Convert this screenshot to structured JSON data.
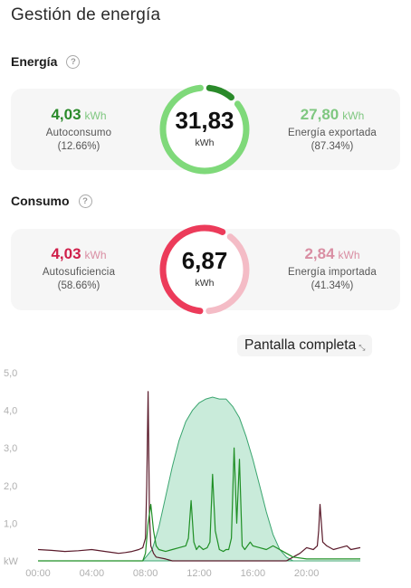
{
  "page": {
    "title": "Gestión de energía"
  },
  "energy": {
    "section_title": "Energía",
    "self_consumption": {
      "value": "4,03",
      "unit": "kWh",
      "label": "Autoconsumo",
      "percent": "(12.66%)"
    },
    "exported": {
      "value": "27,80",
      "unit": "kWh",
      "label": "Energía exportada",
      "percent": "(87.34%)"
    },
    "total": {
      "value": "31,83",
      "unit": "kWh"
    },
    "ring": {
      "self_fraction": 0.1266,
      "color_self": "#2a8a2a",
      "color_export": "#7fd97a"
    }
  },
  "consumption": {
    "section_title": "Consumo",
    "self_sufficiency": {
      "value": "4,03",
      "unit": "kWh",
      "label": "Autosuficiencia",
      "percent": "(58.66%)"
    },
    "imported": {
      "value": "2,84",
      "unit": "kWh",
      "label": "Energía importada",
      "percent": "(41.34%)"
    },
    "total": {
      "value": "6,87",
      "unit": "kWh"
    },
    "ring": {
      "self_fraction": 0.5866,
      "color_self": "#ec3b5a",
      "color_import": "#f4bcc6"
    }
  },
  "fullscreen_button": {
    "label": "Pantalla completa",
    "icon": "expand-icon"
  },
  "chart_data": {
    "type": "area",
    "x_ticks": [
      "00:00",
      "04:00",
      "08:00",
      "12:00",
      "16:00",
      "20:00"
    ],
    "y_ticks": [
      "kW",
      "1,0",
      "2,0",
      "3,0",
      "4,0",
      "5,0"
    ],
    "ylim": [
      0,
      5
    ],
    "xlim": [
      0,
      24
    ],
    "grid": false,
    "series": [
      {
        "color": "#3aa56f",
        "fill": "#bfe8d4",
        "x": [
          0,
          7.8,
          8.5,
          9.0,
          9.5,
          10.0,
          10.5,
          11.0,
          11.5,
          12.0,
          12.5,
          13.0,
          13.5,
          14.0,
          14.5,
          15.0,
          15.5,
          16.0,
          16.5,
          17.0,
          17.5,
          18.0,
          18.5,
          19.0,
          24
        ],
        "y": [
          0,
          0,
          0.3,
          0.9,
          1.7,
          2.5,
          3.2,
          3.7,
          4.0,
          4.2,
          4.3,
          4.35,
          4.3,
          4.3,
          4.1,
          3.8,
          3.3,
          2.7,
          2.0,
          1.3,
          0.7,
          0.3,
          0.1,
          0,
          0
        ]
      },
      {
        "color": "#5a1a2a",
        "x": [
          0,
          1,
          2,
          3,
          4,
          5,
          6,
          6.5,
          7,
          7.5,
          7.8,
          8.0,
          8.1,
          8.2,
          8.3,
          8.4,
          8.6,
          8.8,
          9.5,
          10,
          18.5,
          19,
          19.5,
          20,
          20.5,
          20.8,
          20.9,
          21.0,
          21.2,
          21.5,
          22,
          22.5,
          23,
          23.3,
          24
        ],
        "y": [
          0.3,
          0.28,
          0.25,
          0.27,
          0.3,
          0.25,
          0.2,
          0.22,
          0.25,
          0.3,
          0.35,
          0.6,
          2.0,
          4.5,
          1.2,
          0.4,
          0.2,
          0.1,
          0.05,
          0,
          0,
          0.1,
          0.2,
          0.35,
          0.3,
          0.4,
          0.8,
          1.5,
          0.5,
          0.4,
          0.3,
          0.35,
          0.4,
          0.3,
          0.35
        ]
      },
      {
        "color": "#1f8f25",
        "x": [
          0,
          7.8,
          8.0,
          8.2,
          8.4,
          8.6,
          8.8,
          9.0,
          9.5,
          10.0,
          10.5,
          11.0,
          11.2,
          11.4,
          11.6,
          11.8,
          12.0,
          12.3,
          12.6,
          12.8,
          13.0,
          13.2,
          13.5,
          13.8,
          14.0,
          14.2,
          14.4,
          14.6,
          14.8,
          15.0,
          15.2,
          15.4,
          15.6,
          15.8,
          16.0,
          16.5,
          17.0,
          17.5,
          18.0,
          18.5,
          19.0,
          20.0,
          21.0,
          22.0,
          24.0
        ],
        "y": [
          0,
          0,
          0.2,
          1.0,
          1.5,
          0.8,
          0.4,
          0.3,
          0.25,
          0.3,
          0.35,
          0.4,
          0.6,
          1.6,
          0.5,
          0.3,
          0.4,
          0.3,
          0.35,
          0.5,
          2.3,
          0.8,
          0.3,
          0.25,
          0.3,
          0.3,
          0.6,
          3.0,
          1.0,
          2.7,
          0.4,
          0.3,
          0.4,
          0.5,
          0.4,
          0.35,
          0.3,
          0.4,
          0.3,
          0.2,
          0.1,
          0.05,
          0.05,
          0.05,
          0.05
        ]
      }
    ]
  }
}
